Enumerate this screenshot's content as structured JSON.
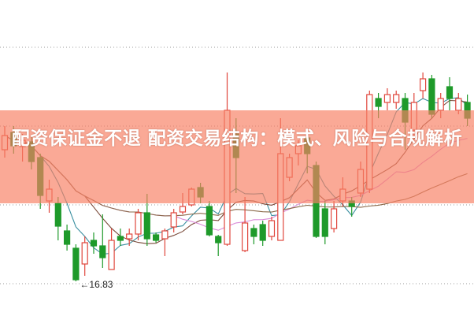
{
  "title": "配资保证金不退 配资交易结构：模式、风险与合规解析",
  "chart_data": {
    "type": "candlestick",
    "title": "",
    "xlabel": "",
    "ylabel": "",
    "grid": true,
    "annotations": [
      {
        "label": "16.83",
        "text": "←16.83"
      }
    ],
    "colors": {
      "up": "#e0463c",
      "down": "#1e9a2a",
      "ma_short": "#3a8fa0",
      "ma_mid": "#7a4a3a",
      "ma_long": "#d98ad8",
      "ma_longest": "#8b6a4a"
    },
    "candles": [
      [
        20.17,
        20.53,
        20.77,
        19.97
      ],
      [
        20.61,
        20.27,
        20.77,
        20.07
      ],
      [
        20.25,
        20.41,
        20.57,
        19.87
      ],
      [
        20.37,
        19.87,
        20.53,
        19.67
      ],
      [
        19.97,
        19.01,
        20.07,
        18.67
      ],
      [
        18.87,
        19.17,
        19.41,
        18.57
      ],
      [
        18.81,
        18.23,
        18.97,
        17.87
      ],
      [
        18.11,
        17.77,
        18.27,
        17.61
      ],
      [
        17.67,
        16.87,
        17.77,
        16.83
      ],
      [
        17.27,
        17.81,
        17.97,
        16.97
      ],
      [
        17.87,
        17.73,
        18.07,
        17.53
      ],
      [
        17.73,
        17.43,
        18.53,
        17.17
      ],
      [
        17.13,
        17.87,
        18.17,
        17.13
      ],
      [
        17.97,
        17.87,
        18.17,
        17.73
      ],
      [
        17.91,
        18.03,
        18.17,
        17.73
      ],
      [
        18.03,
        18.57,
        18.67,
        17.87
      ],
      [
        18.57,
        17.91,
        19.05,
        17.73
      ],
      [
        18.01,
        17.87,
        18.07,
        17.81
      ],
      [
        17.91,
        18.11,
        18.17,
        17.47
      ],
      [
        18.21,
        18.57,
        18.67,
        18.07
      ],
      [
        18.59,
        18.73,
        19.07,
        18.53
      ],
      [
        18.77,
        19.17,
        19.21,
        18.73
      ],
      [
        19.21,
        18.97,
        19.33,
        18.81
      ],
      [
        18.73,
        18.01,
        18.87,
        17.97
      ],
      [
        17.97,
        17.81,
        18.01,
        17.47
      ],
      [
        17.77,
        21.17,
        22.13,
        17.73
      ],
      [
        20.57,
        19.97,
        20.97,
        19.07
      ],
      [
        17.61,
        18.31,
        18.97,
        17.57
      ],
      [
        18.17,
        17.97,
        18.27,
        17.77
      ],
      [
        18.27,
        17.87,
        18.37,
        17.73
      ],
      [
        17.97,
        18.37,
        18.47,
        17.87
      ],
      [
        17.87,
        20.07,
        20.97,
        17.87
      ],
      [
        19.47,
        19.97,
        20.07,
        19.37
      ],
      [
        20.07,
        20.27,
        20.41,
        19.77
      ],
      [
        20.47,
        20.07,
        20.67,
        19.57
      ],
      [
        19.77,
        17.97,
        19.87,
        17.93
      ],
      [
        18.67,
        17.97,
        18.87,
        17.77
      ],
      [
        18.17,
        18.67,
        18.87,
        18.07
      ],
      [
        18.87,
        19.17,
        19.47,
        18.73
      ],
      [
        18.87,
        18.73,
        18.97,
        18.47
      ],
      [
        19.07,
        19.67,
        19.87,
        18.97
      ],
      [
        19.17,
        21.57,
        21.67,
        19.07
      ],
      [
        21.47,
        21.27,
        21.61,
        20.97
      ],
      [
        21.37,
        21.57,
        21.73,
        21.17
      ],
      [
        21.37,
        21.57,
        21.67,
        21.21
      ],
      [
        21.47,
        20.87,
        21.61,
        20.17
      ],
      [
        20.67,
        21.37,
        21.61,
        20.47
      ],
      [
        21.67,
        21.97,
        22.13,
        21.47
      ],
      [
        21.97,
        21.07,
        22.07,
        20.97
      ],
      [
        21.17,
        21.47,
        21.61,
        20.97
      ],
      [
        21.77,
        21.47,
        22.01,
        21.17
      ],
      [
        21.17,
        21.47,
        21.61,
        21.07
      ],
      [
        21.37,
        20.97,
        21.57,
        20.77
      ]
    ],
    "candle_fields": [
      "open",
      "close",
      "high",
      "low"
    ],
    "moving_averages": [
      5,
      10,
      20,
      40
    ]
  }
}
